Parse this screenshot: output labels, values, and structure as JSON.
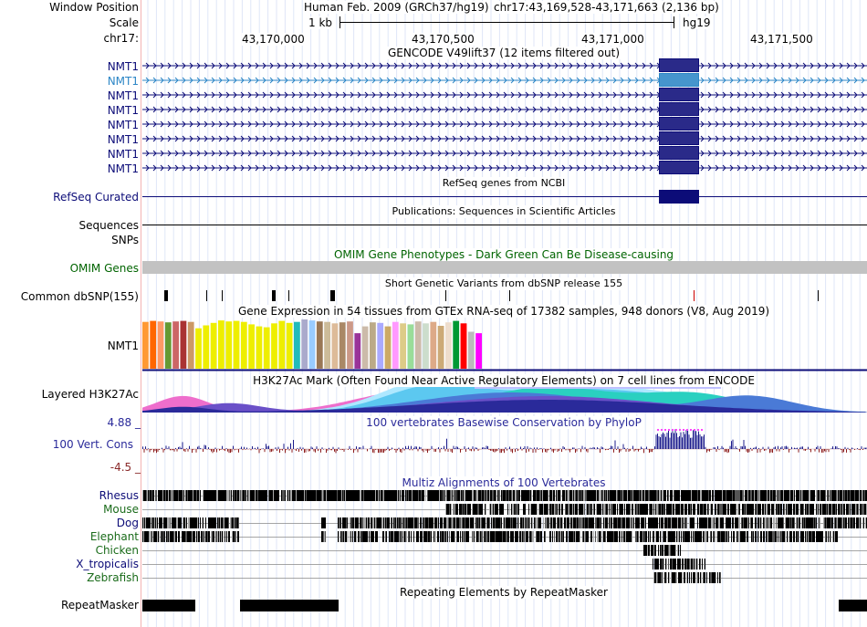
{
  "header": {
    "window_position_label": "Window Position",
    "scale_label": "Scale",
    "chrom_label": "chr17:",
    "assembly_text": "Human Feb. 2009 (GRCh37/hg19)",
    "position_text": "chr17:43,169,528-43,171,663 (2,136 bp)",
    "scale_text": "1 kb",
    "scale_db": "hg19",
    "ticks": [
      "43,170,000",
      "43,170,500",
      "43,171,000",
      "43,171,500"
    ]
  },
  "gencode": {
    "title": "GENCODE V49lift37 (12 items filtered out)",
    "genes": [
      "NMT1",
      "NMT1",
      "NMT1",
      "NMT1",
      "NMT1",
      "NMT1",
      "NMT1",
      "NMT1"
    ],
    "colors": {
      "gene": "#0c0c78",
      "highlight": "#2c86c6"
    }
  },
  "refseq": {
    "title": "RefSeq genes from NCBI",
    "label": "RefSeq Curated"
  },
  "publications": {
    "title": "Publications: Sequences in Scientific Articles",
    "label_sequences": "Sequences",
    "label_snps": "SNPs"
  },
  "omim": {
    "title": "OMIM Gene Phenotypes - Dark Green Can Be Disease-causing",
    "label": "OMIM Genes",
    "color": "#006400"
  },
  "dbsnp": {
    "title": "Short Genetic Variants from dbSNP release 155",
    "label": "Common dbSNP(155)"
  },
  "gtex": {
    "title": "Gene Expression in 54 tissues from GTEx RNA-seq of 17382 samples, 948 donors (V8, Aug 2019)",
    "label": "NMT1",
    "bars": [
      {
        "c": "#ff9933",
        "v": 0.95
      },
      {
        "c": "#ff6600",
        "v": 0.97
      },
      {
        "c": "#ff9966",
        "v": 0.96
      },
      {
        "c": "#669933",
        "v": 0.94
      },
      {
        "c": "#cc6666",
        "v": 0.96
      },
      {
        "c": "#aa3333",
        "v": 0.97
      },
      {
        "c": "#cc9966",
        "v": 0.95
      },
      {
        "c": "#eeee00",
        "v": 0.82
      },
      {
        "c": "#eeee00",
        "v": 0.88
      },
      {
        "c": "#eeee00",
        "v": 0.93
      },
      {
        "c": "#eeee00",
        "v": 0.98
      },
      {
        "c": "#eeee00",
        "v": 0.96
      },
      {
        "c": "#eeee00",
        "v": 0.97
      },
      {
        "c": "#eeee00",
        "v": 0.95
      },
      {
        "c": "#eeee00",
        "v": 0.9
      },
      {
        "c": "#eeee00",
        "v": 0.86
      },
      {
        "c": "#eeee00",
        "v": 0.84
      },
      {
        "c": "#eeee00",
        "v": 0.92
      },
      {
        "c": "#eeee00",
        "v": 0.97
      },
      {
        "c": "#eeee00",
        "v": 0.93
      },
      {
        "c": "#22bbbb",
        "v": 0.95
      },
      {
        "c": "#aaaacc",
        "v": 1.0
      },
      {
        "c": "#99ccff",
        "v": 0.98
      },
      {
        "c": "#997755",
        "v": 0.96
      },
      {
        "c": "#ccbb99",
        "v": 0.95
      },
      {
        "c": "#ddbb99",
        "v": 0.92
      },
      {
        "c": "#aa8866",
        "v": 0.94
      },
      {
        "c": "#cc9988",
        "v": 0.96
      },
      {
        "c": "#993399",
        "v": 0.72
      },
      {
        "c": "#ccbbaa",
        "v": 0.86
      },
      {
        "c": "#bbaa88",
        "v": 0.94
      },
      {
        "c": "#aaaaff",
        "v": 0.93
      },
      {
        "c": "#ccaa66",
        "v": 0.86
      },
      {
        "c": "#ff99ff",
        "v": 0.95
      },
      {
        "c": "#ddcc88",
        "v": 0.92
      },
      {
        "c": "#99dd99",
        "v": 0.9
      },
      {
        "c": "#ccbbaa",
        "v": 0.96
      },
      {
        "c": "#ccddcc",
        "v": 0.92
      },
      {
        "c": "#ddaa88",
        "v": 0.95
      },
      {
        "c": "#ccaa77",
        "v": 0.87
      },
      {
        "c": "#eeddcc",
        "v": 0.94
      },
      {
        "c": "#009933",
        "v": 0.97
      },
      {
        "c": "#ff0000",
        "v": 0.92
      },
      {
        "c": "#bbbbbb",
        "v": 0.75
      },
      {
        "c": "#ff00ff",
        "v": 0.72
      }
    ]
  },
  "h3k27ac": {
    "title": "H3K27Ac Mark (Often Found Near Active Regulatory Elements) on 7 cell lines from ENCODE",
    "label": "Layered H3K27Ac"
  },
  "phylop": {
    "title": "100 vertebrates Basewise Conservation by PhyloP",
    "label": "100 Vert. Cons",
    "max": "4.88 _",
    "min": "-4.5 _",
    "color": "#1c1c8c"
  },
  "multiz": {
    "title": "Multiz Alignments of 100 Vertebrates",
    "species": [
      {
        "name": "Rhesus",
        "color": "#0c0c78"
      },
      {
        "name": "Mouse",
        "color": "#1a6b1a"
      },
      {
        "name": "Dog",
        "color": "#0c0c78"
      },
      {
        "name": "Elephant",
        "color": "#1a6b1a"
      },
      {
        "name": "Chicken",
        "color": "#1a6b1a"
      },
      {
        "name": "X_tropicalis",
        "color": "#0c0c78"
      },
      {
        "name": "Zebrafish",
        "color": "#1a6b1a"
      }
    ]
  },
  "repeatmasker": {
    "title": "Repeating Elements by RepeatMasker",
    "label": "RepeatMasker"
  }
}
